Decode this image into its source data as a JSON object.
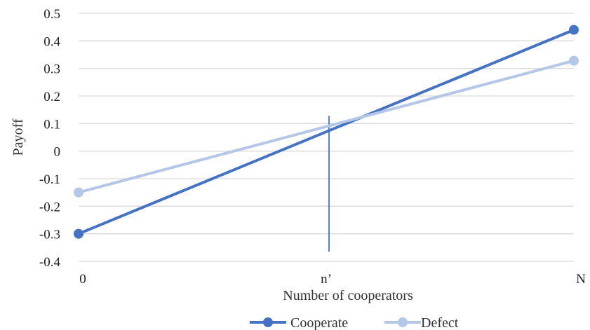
{
  "chart_data": {
    "type": "line",
    "title": "",
    "xlabel": "Number of cooperators",
    "ylabel": "Payoff",
    "x_categories": [
      "0",
      "n’",
      "N"
    ],
    "x_positions": [
      0,
      0.5,
      1
    ],
    "ylim": [
      -0.4,
      0.5
    ],
    "y_ticks": [
      -0.4,
      -0.3,
      -0.2,
      -0.1,
      0,
      0.1,
      0.2,
      0.3,
      0.4,
      0.5
    ],
    "y_tick_labels": [
      "-0.4",
      "-0.3",
      "-0.2",
      "-0.1",
      "0",
      "0.1",
      "0.2",
      "0.3",
      "0.4",
      "0.5"
    ],
    "grid": true,
    "legend_position": "bottom",
    "series": [
      {
        "name": "Cooperate",
        "color": "#4472C4",
        "x": [
          0,
          1
        ],
        "y": [
          -0.3,
          0.44
        ]
      },
      {
        "name": "Defect",
        "color": "#B4C7E7",
        "x": [
          0,
          1
        ],
        "y": [
          -0.15,
          0.328
        ]
      }
    ],
    "annotations": [
      {
        "type": "vertical-line",
        "x": 0.5,
        "y_from": -0.365,
        "y_to": 0.128,
        "color": "#4472C4"
      }
    ]
  }
}
